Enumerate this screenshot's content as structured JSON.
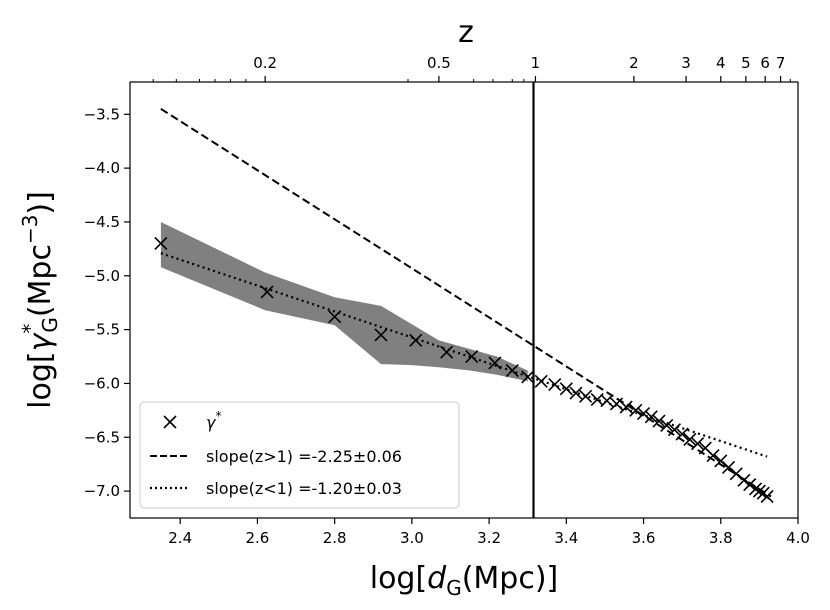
{
  "chart_data": {
    "type": "scatter",
    "xlabel": {
      "pre": "log[",
      "italic": "d",
      "sub": "G",
      "post": "(Mpc)]"
    },
    "ylabel": {
      "pre": "log[",
      "italic": "γ",
      "sup": "*",
      "sub": "G",
      "post": "(Mpc",
      "sup2": "−3",
      "post2": ")]"
    },
    "top_axis_label": "z",
    "xlim": [
      2.27,
      4.0
    ],
    "ylim": [
      -7.25,
      -3.2
    ],
    "x_ticks": [
      2.4,
      2.6,
      2.8,
      3.0,
      3.2,
      3.4,
      3.6,
      3.8,
      4.0
    ],
    "x_tick_labels": [
      "2.4",
      "2.6",
      "2.8",
      "3.0",
      "3.2",
      "3.4",
      "3.6",
      "3.8",
      "4.0"
    ],
    "y_ticks": [
      -3.5,
      -4.0,
      -4.5,
      -5.0,
      -5.5,
      -6.0,
      -6.5,
      -7.0
    ],
    "y_tick_labels": [
      "−3.5",
      "−4.0",
      "−4.5",
      "−5.0",
      "−5.5",
      "−6.0",
      "−6.5",
      "−7.0"
    ],
    "top_ticks": [
      {
        "x": 2.62,
        "label": "0.2"
      },
      {
        "x": 3.07,
        "label": "0.5"
      },
      {
        "x": 3.32,
        "label": "1"
      },
      {
        "x": 3.575,
        "label": "2"
      },
      {
        "x": 3.71,
        "label": "3"
      },
      {
        "x": 3.8,
        "label": "4"
      },
      {
        "x": 3.865,
        "label": "5"
      },
      {
        "x": 3.915,
        "label": "6"
      },
      {
        "x": 3.955,
        "label": "7"
      }
    ],
    "top_minor_ticks": [
      2.33,
      2.39,
      2.45,
      2.49,
      2.53,
      2.57,
      2.99,
      3.16,
      3.21,
      3.26,
      3.29,
      3.98
    ],
    "vertical_line_x": 3.315,
    "band": {
      "x": [
        2.35,
        2.62,
        2.8,
        2.92,
        3.0,
        3.07,
        3.15,
        3.22,
        3.3
      ],
      "upper": [
        -4.5,
        -4.97,
        -5.2,
        -5.28,
        -5.45,
        -5.6,
        -5.68,
        -5.75,
        -5.88
      ],
      "lower": [
        -4.92,
        -5.32,
        -5.46,
        -5.82,
        -5.83,
        -5.85,
        -5.88,
        -5.92,
        -5.98
      ]
    },
    "series": [
      {
        "name": "γ",
        "name_sup": "*",
        "style": "marker-x",
        "x": [
          2.35,
          2.625,
          2.8,
          2.92,
          3.01,
          3.09,
          3.155,
          3.215,
          3.26,
          3.3,
          3.335,
          3.37,
          3.4,
          3.425,
          3.45,
          3.48,
          3.505,
          3.53,
          3.555,
          3.58,
          3.6,
          3.62,
          3.64,
          3.66,
          3.68,
          3.7,
          3.72,
          3.74,
          3.76,
          3.78,
          3.8,
          3.82,
          3.84,
          3.86,
          3.875,
          3.89,
          3.9,
          3.91,
          3.92
        ],
        "y": [
          -4.7,
          -5.15,
          -5.38,
          -5.55,
          -5.6,
          -5.71,
          -5.75,
          -5.81,
          -5.88,
          -5.94,
          -5.98,
          -6.01,
          -6.05,
          -6.09,
          -6.12,
          -6.15,
          -6.16,
          -6.19,
          -6.22,
          -6.25,
          -6.28,
          -6.31,
          -6.35,
          -6.39,
          -6.43,
          -6.47,
          -6.52,
          -6.56,
          -6.6,
          -6.67,
          -6.72,
          -6.78,
          -6.84,
          -6.9,
          -6.94,
          -6.98,
          -7.0,
          -7.02,
          -7.05
        ]
      },
      {
        "name": "slope(z>1) =-2.25±0.06",
        "style": "dashed",
        "x": [
          2.35,
          3.93
        ],
        "y": [
          -3.45,
          -7.05
        ]
      },
      {
        "name": "slope(z<1) =-1.20±0.03",
        "style": "dotted",
        "x": [
          2.35,
          3.92
        ],
        "y": [
          -4.79,
          -6.68
        ]
      }
    ],
    "legend_position": "lower-left"
  }
}
